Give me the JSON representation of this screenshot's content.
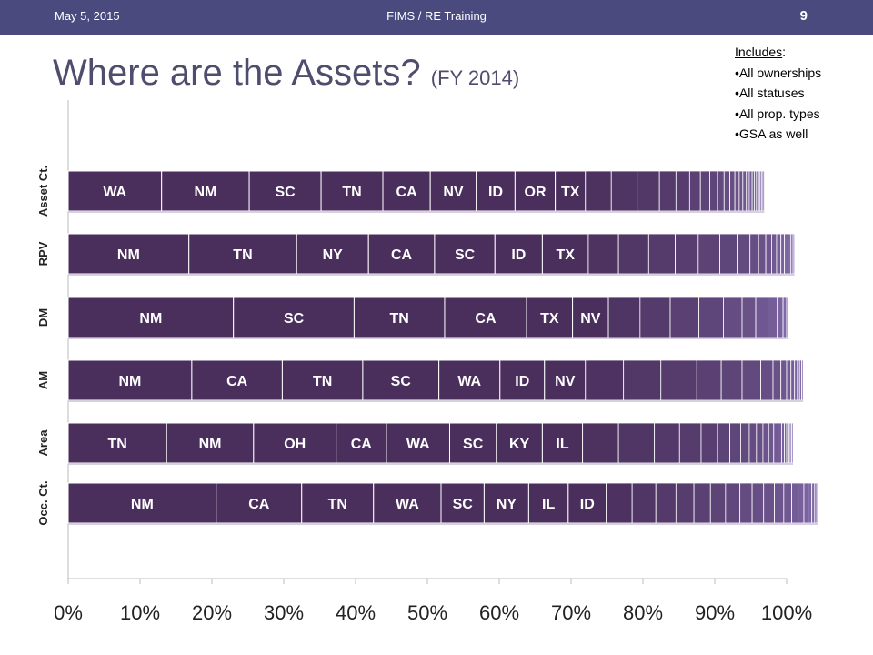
{
  "header": {
    "date": "May 5, 2015",
    "center": "FIMS / RE Training",
    "page": "9"
  },
  "title": {
    "main": "Where are the Assets?",
    "sub": "(FY 2014)"
  },
  "notes": {
    "heading": "Includes",
    "items": [
      "All ownerships",
      "All statuses",
      "All prop. types",
      "GSA as well"
    ]
  },
  "colors": {
    "header_bg": "#4b4a7e",
    "bar_dark": "#4a2f5c",
    "bar_light": "#8a74b6",
    "title": "#4f4d6e"
  },
  "chart_data": {
    "type": "bar",
    "orientation": "horizontal",
    "stacked": true,
    "xlim": [
      0,
      100
    ],
    "xticks": [
      "0%",
      "10%",
      "20%",
      "30%",
      "40%",
      "50%",
      "60%",
      "70%",
      "80%",
      "90%",
      "100%"
    ],
    "grid": false,
    "rows": [
      {
        "label": "Asset Ct.",
        "segments": [
          {
            "name": "WA",
            "value": 13.0
          },
          {
            "name": "NM",
            "value": 12.2
          },
          {
            "name": "SC",
            "value": 10.0
          },
          {
            "name": "TN",
            "value": 8.6
          },
          {
            "name": "CA",
            "value": 6.6
          },
          {
            "name": "NV",
            "value": 6.4
          },
          {
            "name": "ID",
            "value": 5.4
          },
          {
            "name": "OR",
            "value": 5.6
          },
          {
            "name": "TX",
            "value": 4.2
          }
        ],
        "tail": [
          3.6,
          3.6,
          3.1,
          2.3,
          1.9,
          1.5,
          1.3,
          1.1,
          0.9,
          0.8,
          0.7,
          0.6,
          0.5,
          0.5,
          0.4,
          0.4,
          0.3,
          0.3,
          0.3,
          0.2,
          0.2,
          0.2,
          0.2
        ]
      },
      {
        "label": "RPV",
        "segments": [
          {
            "name": "NM",
            "value": 16.8
          },
          {
            "name": "TN",
            "value": 15.0
          },
          {
            "name": "NY",
            "value": 10.0
          },
          {
            "name": "CA",
            "value": 9.2
          },
          {
            "name": "SC",
            "value": 8.4
          },
          {
            "name": "ID",
            "value": 6.6
          },
          {
            "name": "TX",
            "value": 6.4
          }
        ],
        "tail": [
          4.2,
          4.2,
          3.7,
          3.2,
          3.0,
          2.4,
          1.8,
          1.2,
          1.0,
          0.8,
          0.7,
          0.6,
          0.5,
          0.5,
          0.4,
          0.3,
          0.2
        ]
      },
      {
        "label": "DM",
        "segments": [
          {
            "name": "NM",
            "value": 23.0
          },
          {
            "name": "SC",
            "value": 16.8
          },
          {
            "name": "TN",
            "value": 12.6
          },
          {
            "name": "CA",
            "value": 11.4
          },
          {
            "name": "TX",
            "value": 6.4
          },
          {
            "name": "NV",
            "value": 5.0
          }
        ],
        "tail": [
          4.4,
          4.2,
          4.0,
          3.4,
          2.6,
          1.9,
          1.7,
          1.3,
          0.8,
          0.5,
          0.3
        ]
      },
      {
        "label": "AM",
        "segments": [
          {
            "name": "NM",
            "value": 17.2
          },
          {
            "name": "CA",
            "value": 12.6
          },
          {
            "name": "TN",
            "value": 11.2
          },
          {
            "name": "SC",
            "value": 10.6
          },
          {
            "name": "WA",
            "value": 8.5
          },
          {
            "name": "ID",
            "value": 6.2
          },
          {
            "name": "NV",
            "value": 5.7
          }
        ],
        "tail": [
          5.3,
          5.2,
          5.0,
          3.4,
          2.9,
          2.6,
          1.7,
          1.1,
          0.8,
          0.6,
          0.5,
          0.4,
          0.3,
          0.3,
          0.2
        ]
      },
      {
        "label": "Area",
        "segments": [
          {
            "name": "TN",
            "value": 13.7
          },
          {
            "name": "NM",
            "value": 12.1
          },
          {
            "name": "OH",
            "value": 11.5
          },
          {
            "name": "CA",
            "value": 7.0
          },
          {
            "name": "WA",
            "value": 8.8
          },
          {
            "name": "SC",
            "value": 6.5
          },
          {
            "name": "KY",
            "value": 6.4
          },
          {
            "name": "IL",
            "value": 5.6
          }
        ],
        "tail": [
          5.0,
          5.0,
          3.5,
          3.0,
          2.3,
          1.7,
          1.5,
          1.2,
          1.0,
          0.9,
          0.8,
          0.7,
          0.6,
          0.5,
          0.4,
          0.3,
          0.3,
          0.2,
          0.2,
          0.2
        ]
      },
      {
        "label": "Occ. Ct.",
        "segments": [
          {
            "name": "NM",
            "value": 20.6
          },
          {
            "name": "CA",
            "value": 11.9
          },
          {
            "name": "TN",
            "value": 10.0
          },
          {
            "name": "WA",
            "value": 9.4
          },
          {
            "name": "SC",
            "value": 6.0
          },
          {
            "name": "NY",
            "value": 6.2
          },
          {
            "name": "IL",
            "value": 5.5
          },
          {
            "name": "ID",
            "value": 5.3
          }
        ],
        "tail": [
          3.6,
          3.3,
          2.8,
          2.5,
          2.3,
          2.1,
          2.0,
          1.7,
          1.6,
          1.5,
          1.3,
          1.1,
          0.9,
          0.8,
          0.6,
          0.5,
          0.4,
          0.3,
          0.2
        ]
      }
    ]
  }
}
